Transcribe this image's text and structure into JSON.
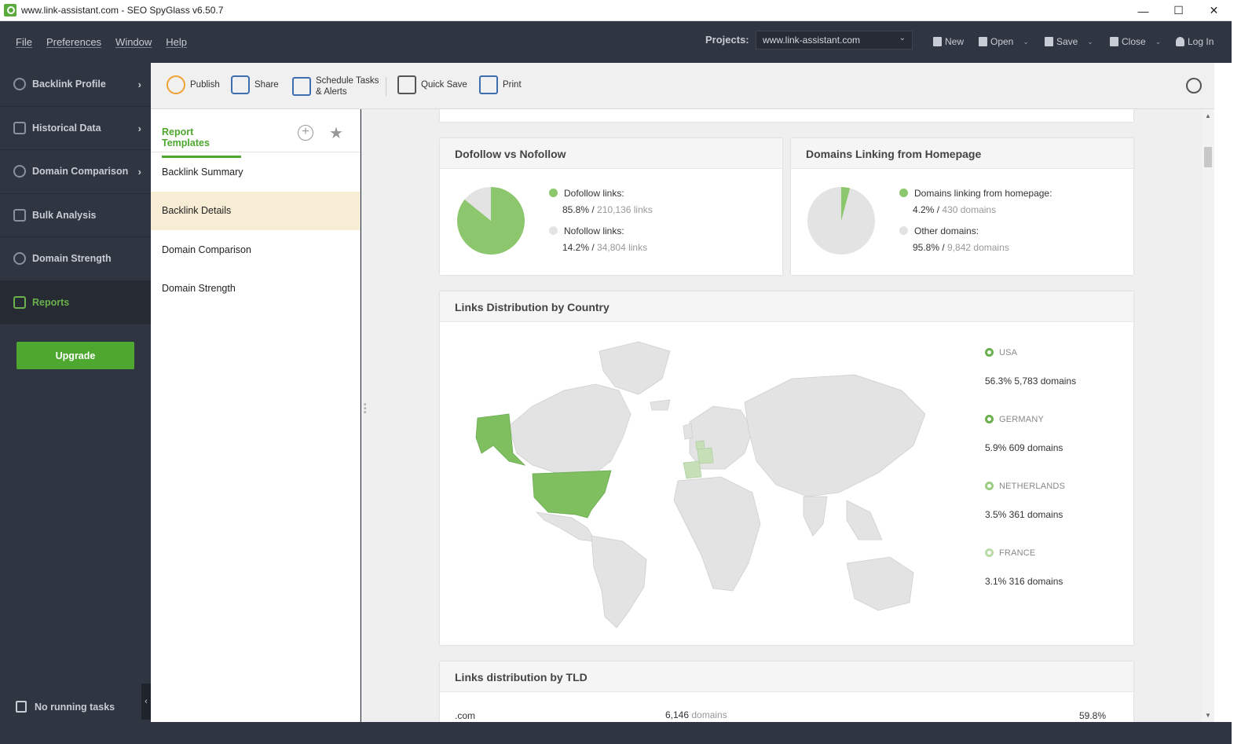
{
  "window": {
    "title": "www.link-assistant.com - SEO SpyGlass v6.50.7",
    "controls": [
      "—",
      "☐",
      "✕"
    ]
  },
  "menu": {
    "items": [
      "File",
      "Preferences",
      "Window",
      "Help"
    ],
    "projects_label": "Projects:",
    "project_value": "www.link-assistant.com",
    "actions": [
      "New",
      "Open",
      "Save",
      "Close",
      "Log In"
    ]
  },
  "sidebar": {
    "items": [
      {
        "label": "Backlink Profile",
        "icon": "link-icon",
        "chevron": "›"
      },
      {
        "label": "Historical Data",
        "icon": "calendar-icon",
        "chevron": "›"
      },
      {
        "label": "Domain Comparison",
        "icon": "bubbles-icon",
        "chevron": "›"
      },
      {
        "label": "Bulk Analysis",
        "icon": "checklist-icon",
        "chevron": ""
      },
      {
        "label": "Domain Strength",
        "icon": "gauge-icon",
        "chevron": ""
      },
      {
        "label": "Reports",
        "icon": "report-icon",
        "chevron": ""
      }
    ],
    "active_index": 5,
    "upgrade_label": "Upgrade",
    "tasks_label": "No running tasks"
  },
  "toolbar": {
    "publish": "Publish",
    "share": "Share",
    "schedule_line1": "Schedule Tasks",
    "schedule_line2": "& Alerts",
    "quick_save": "Quick Save",
    "print": "Print"
  },
  "templates": {
    "title": "Report Templates",
    "items": [
      "Backlink Summary",
      "Backlink Details",
      "Domain Comparison",
      "Domain Strength"
    ],
    "selected_index": 1
  },
  "report": {
    "dofollow": {
      "title": "Dofollow vs Nofollow",
      "rows": [
        {
          "label": "Dofollow links:",
          "pct": "85.8%",
          "sep": " / ",
          "detail": "210,136 links"
        },
        {
          "label": "Nofollow links:",
          "pct": "14.2%",
          "sep": " / ",
          "detail": "34,804 links"
        }
      ]
    },
    "homepage": {
      "title": "Domains Linking from Homepage",
      "rows": [
        {
          "label": "Domains linking from homepage:",
          "pct": "4.2%",
          "sep": " / ",
          "detail": "430 domains"
        },
        {
          "label": "Other domains:",
          "pct": "95.8%",
          "sep": " / ",
          "detail": "9,842 domains"
        }
      ]
    },
    "country": {
      "title": "Links Distribution by Country",
      "countries": [
        {
          "name": "USA",
          "value": "56.3% 5,783 domains"
        },
        {
          "name": "GERMANY",
          "value": "5.9% 609 domains"
        },
        {
          "name": "NETHERLANDS",
          "value": "3.5% 361 domains"
        },
        {
          "name": "FRANCE",
          "value": "3.1% 316 domains"
        }
      ]
    },
    "tld": {
      "title": "Links distribution by TLD",
      "row": {
        "tld": ".com",
        "count": "6,146",
        "unit": "domains",
        "pct": "59.8%"
      }
    }
  },
  "colors": {
    "accent": "#4ea72e",
    "pie_green": "#8cc66d",
    "pie_gray": "#e3e3e3",
    "sidebar_bg": "#2f3541"
  },
  "chart_data": [
    {
      "type": "pie",
      "title": "Dofollow vs Nofollow",
      "categories": [
        "Dofollow links",
        "Nofollow links"
      ],
      "values": [
        85.8,
        14.2
      ]
    },
    {
      "type": "pie",
      "title": "Domains Linking from Homepage",
      "categories": [
        "Domains linking from homepage",
        "Other domains"
      ],
      "values": [
        4.2,
        95.8
      ]
    }
  ]
}
